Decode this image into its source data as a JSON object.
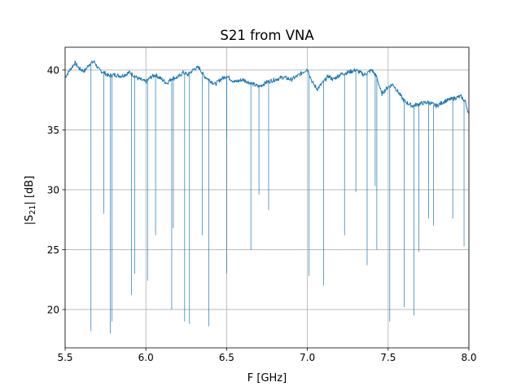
{
  "chart_data": {
    "type": "line",
    "title": "S21 from VNA",
    "xlabel": "F [GHz]",
    "ylabel_prefix": "|S",
    "ylabel_sub": "21",
    "ylabel_suffix": "| [dB]",
    "xlim": [
      5.5,
      8.0
    ],
    "ylim": [
      16.8,
      41.9
    ],
    "xticks": [
      5.5,
      6.0,
      6.5,
      7.0,
      7.5,
      8.0
    ],
    "xtick_labels": [
      "5.5",
      "6.0",
      "6.5",
      "7.0",
      "7.5",
      "8.0"
    ],
    "yticks": [
      20,
      25,
      30,
      35,
      40
    ],
    "ytick_labels": [
      "20",
      "25",
      "30",
      "35",
      "40"
    ],
    "grid": true,
    "line_color": "#1f77b4",
    "baseline": {
      "x": [
        5.5,
        5.53,
        5.56,
        5.59,
        5.62,
        5.65,
        5.68,
        5.71,
        5.74,
        5.77,
        5.8,
        5.85,
        5.9,
        5.95,
        6.0,
        6.03,
        6.06,
        6.1,
        6.13,
        6.16,
        6.2,
        6.23,
        6.26,
        6.3,
        6.33,
        6.36,
        6.4,
        6.43,
        6.46,
        6.5,
        6.55,
        6.6,
        6.65,
        6.7,
        6.75,
        6.8,
        6.85,
        6.9,
        6.95,
        7.0,
        7.03,
        7.06,
        7.1,
        7.13,
        7.16,
        7.2,
        7.25,
        7.3,
        7.35,
        7.4,
        7.43,
        7.46,
        7.5,
        7.53,
        7.56,
        7.6,
        7.65,
        7.7,
        7.75,
        7.8,
        7.85,
        7.9,
        7.95,
        7.98,
        8.0
      ],
      "y": [
        39.4,
        40.0,
        40.6,
        40.1,
        39.9,
        40.5,
        40.7,
        40.0,
        39.8,
        39.5,
        39.6,
        39.5,
        39.8,
        39.3,
        39.0,
        39.4,
        39.6,
        39.2,
        38.9,
        39.3,
        39.4,
        39.8,
        39.6,
        40.1,
        40.2,
        39.5,
        39.1,
        38.8,
        39.2,
        39.5,
        39.0,
        39.2,
        38.9,
        38.6,
        39.0,
        39.2,
        39.4,
        39.2,
        39.6,
        40.1,
        39.0,
        38.4,
        39.0,
        39.5,
        39.2,
        39.6,
        39.8,
        40.0,
        39.6,
        40.0,
        39.4,
        38.0,
        38.6,
        38.8,
        38.2,
        37.4,
        37.0,
        37.2,
        37.3,
        37.0,
        37.4,
        37.6,
        37.8,
        37.3,
        36.2
      ]
    },
    "dips": {
      "x": [
        5.66,
        5.74,
        5.78,
        5.79,
        5.91,
        5.93,
        6.01,
        6.06,
        6.16,
        6.17,
        6.24,
        6.27,
        6.35,
        6.39,
        6.5,
        6.5,
        6.65,
        6.7,
        6.76,
        7.01,
        7.1,
        7.23,
        7.3,
        7.37,
        7.42,
        7.43,
        7.51,
        7.6,
        7.66,
        7.69,
        7.75,
        7.78,
        7.9,
        7.97
      ],
      "y": [
        18.2,
        28.0,
        18.0,
        19.0,
        21.2,
        23.0,
        22.4,
        26.2,
        20.0,
        26.8,
        19.0,
        18.8,
        26.2,
        18.6,
        23.0,
        34.3,
        25.0,
        29.6,
        28.3,
        22.8,
        22.0,
        26.2,
        29.8,
        23.7,
        30.3,
        25.0,
        19.0,
        20.2,
        19.5,
        24.8,
        27.6,
        27.0,
        27.6,
        25.3
      ]
    }
  }
}
